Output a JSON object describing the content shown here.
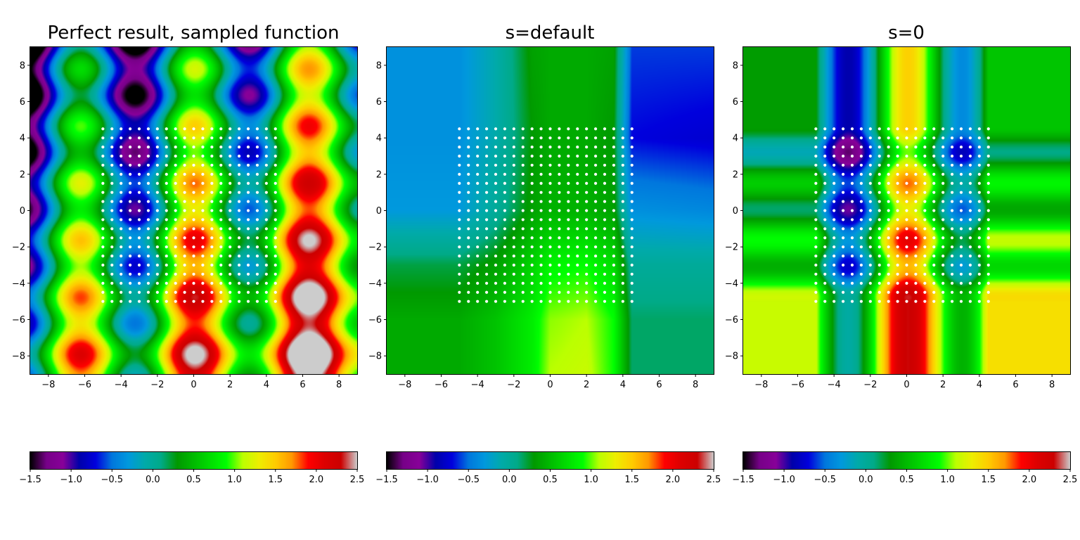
{
  "figure": {
    "colormap": "nipy_spectral",
    "marker_color": "#ffffff"
  },
  "chart_data": [
    {
      "type": "heatmap",
      "title": "Perfect result, sampled function",
      "xlim": [
        -9,
        9
      ],
      "ylim": [
        -9,
        9
      ],
      "xticks": [
        "−8",
        "−6",
        "−4",
        "−2",
        "0",
        "2",
        "4",
        "6",
        "8"
      ],
      "yticks": [
        "8",
        "6",
        "4",
        "2",
        "0",
        "−2",
        "−4",
        "−6",
        "−8"
      ],
      "clim": [
        -1.5,
        2.5
      ],
      "colorbar_ticks": [
        "−1.5",
        "−1.0",
        "−0.5",
        "0.0",
        "0.5",
        "1.0",
        "1.5",
        "2.0",
        "2.5"
      ],
      "sample_points": {
        "x_start": -5,
        "x_end": 4.5,
        "y_start": -5,
        "y_end": 4.5,
        "step": 0.5
      }
    },
    {
      "type": "heatmap",
      "title": "s=default",
      "xlim": [
        -9,
        9
      ],
      "ylim": [
        -9,
        9
      ],
      "xticks": [
        "−8",
        "−6",
        "−4",
        "−2",
        "0",
        "2",
        "4",
        "6",
        "8"
      ],
      "yticks": [
        "8",
        "6",
        "4",
        "2",
        "0",
        "−2",
        "−4",
        "−6",
        "−8"
      ],
      "clim": [
        -1.5,
        2.5
      ],
      "colorbar_ticks": [
        "−1.5",
        "−1.0",
        "−0.5",
        "0.0",
        "0.5",
        "1.0",
        "1.5",
        "2.0",
        "2.5"
      ],
      "sample_points": {
        "x_start": -5,
        "x_end": 4.5,
        "y_start": -5,
        "y_end": 4.5,
        "step": 0.5
      },
      "z_grid": {
        "x": [
          -9,
          -5,
          -3,
          -1,
          0,
          2,
          3.5,
          4.5,
          9
        ],
        "y": [
          9,
          4,
          0,
          -3,
          -6,
          -9
        ],
        "z": [
          [
            -0.35,
            -0.35,
            -0.1,
            0.35,
            0.4,
            0.4,
            0.35,
            -0.6,
            -0.6
          ],
          [
            -0.35,
            -0.35,
            -0.1,
            0.3,
            0.4,
            0.4,
            0.3,
            -0.7,
            -0.75
          ],
          [
            -0.3,
            -0.3,
            0.0,
            0.35,
            0.45,
            0.45,
            0.35,
            -0.35,
            -0.4
          ],
          [
            0.2,
            0.2,
            0.35,
            0.65,
            0.85,
            0.9,
            0.7,
            0.0,
            0.0
          ],
          [
            0.4,
            0.4,
            0.55,
            0.8,
            1.05,
            1.1,
            0.9,
            0.15,
            0.15
          ],
          [
            0.4,
            0.4,
            0.55,
            0.8,
            1.1,
            1.15,
            0.9,
            0.15,
            0.15
          ]
        ]
      }
    },
    {
      "type": "heatmap",
      "title": "s=0",
      "xlim": [
        -9,
        9
      ],
      "ylim": [
        -9,
        9
      ],
      "xticks": [
        "−8",
        "−6",
        "−4",
        "−2",
        "0",
        "2",
        "4",
        "6",
        "8"
      ],
      "yticks": [
        "8",
        "6",
        "4",
        "2",
        "0",
        "−2",
        "−4",
        "−6",
        "−8"
      ],
      "clim": [
        -1.5,
        2.5
      ],
      "colorbar_ticks": [
        "−1.5",
        "−1.0",
        "−0.5",
        "0.0",
        "0.5",
        "1.0",
        "1.5",
        "2.0",
        "2.5"
      ],
      "sample_points": {
        "x_start": -5,
        "x_end": 4.5,
        "y_start": -5,
        "y_end": 4.5,
        "step": 0.5
      }
    }
  ]
}
